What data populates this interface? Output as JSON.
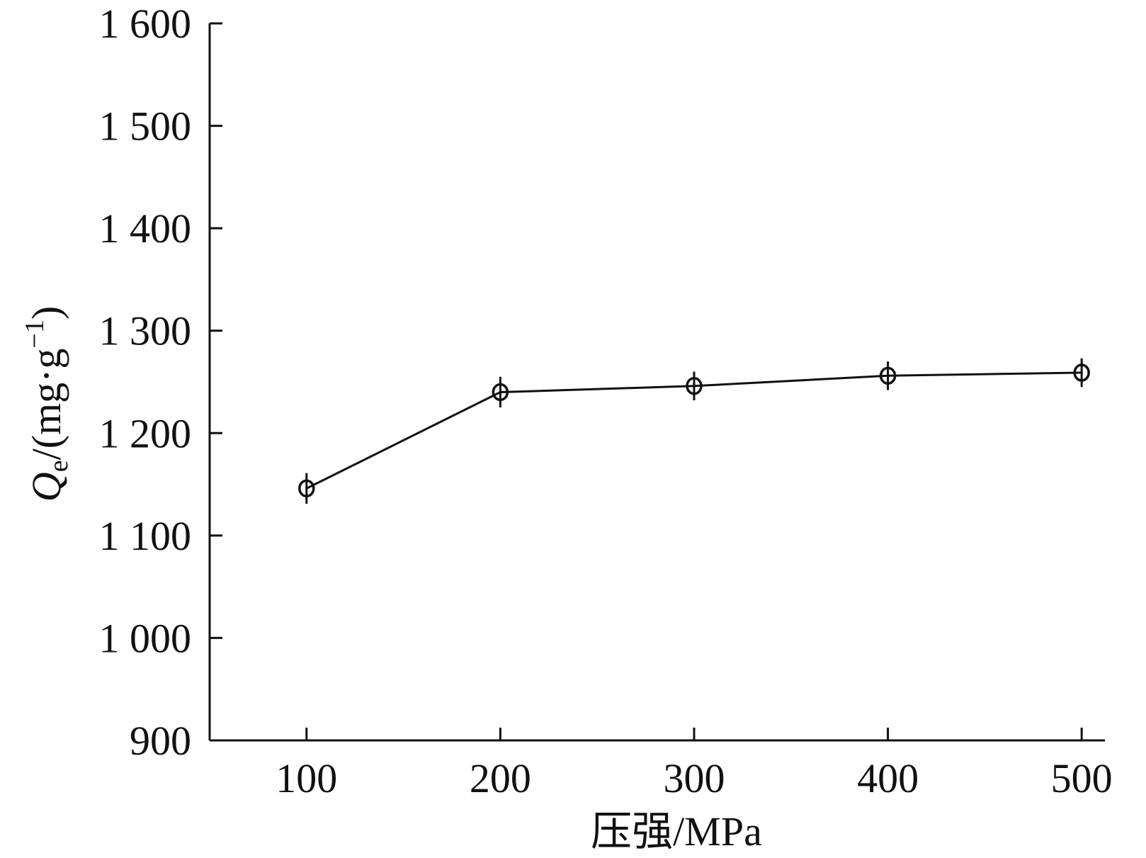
{
  "chart_data": {
    "type": "line",
    "x": [
      100,
      200,
      300,
      400,
      500
    ],
    "series": [
      {
        "values": [
          1146,
          1240,
          1246,
          1256,
          1259
        ],
        "error": [
          15,
          15,
          14,
          14,
          14
        ],
        "marker": "open-circle",
        "color": "#111111"
      }
    ],
    "xticks": [
      "100",
      "200",
      "300",
      "400",
      "500"
    ],
    "yticks": [
      "900",
      "1 000",
      "1 100",
      "1 200",
      "1 300",
      "1 400",
      "1 500",
      "1 600"
    ],
    "ytick_values": [
      900,
      1000,
      1100,
      1200,
      1300,
      1400,
      1500,
      1600
    ],
    "xlabel": "压强/MPa",
    "ylabel_main": "Q",
    "ylabel_sub": "e",
    "ylabel_rest": "/(mg·g",
    "ylabel_sup": "−1",
    "ylabel_close": ")",
    "xlim": [
      50,
      500
    ],
    "ylim": [
      900,
      1600
    ],
    "grid": false,
    "legend": "none"
  }
}
